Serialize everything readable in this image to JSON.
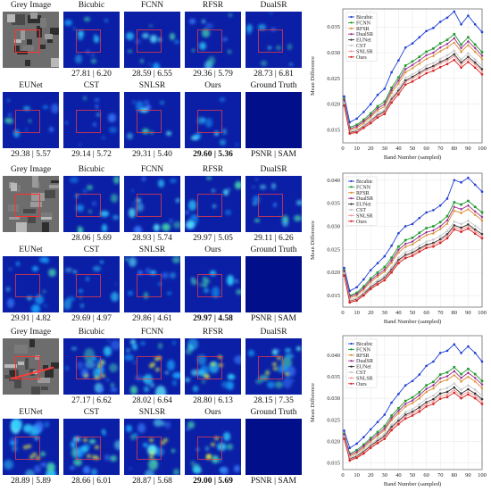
{
  "panels": [
    {
      "titles_top": [
        "Grey Image",
        "Bicubic",
        "FCNN",
        "RFSR",
        "DualSR"
      ],
      "values_top": [
        "",
        "27.81 | 6.20",
        "28.59 | 6.55",
        "29.36 | 5.79",
        "28.73 | 6.81"
      ],
      "titles_bottom": [
        "EUNet",
        "CST",
        "SNLSR",
        "Ours",
        "Ground Truth"
      ],
      "values_bottom": [
        "29.38 | 5.57",
        "29.14 | 5.72",
        "29.31 | 5.40",
        "29.60 | 5.36",
        "PSNR | SAM"
      ]
    },
    {
      "titles_top": [
        "Grey Image",
        "Bicubic",
        "FCNN",
        "RFSR",
        "DualSR"
      ],
      "values_top": [
        "",
        "28.06 | 5.69",
        "28.93 | 5.74",
        "29.97 | 5.05",
        "29.11 | 6.26"
      ],
      "titles_bottom": [
        "EUNet",
        "CST",
        "SNLSR",
        "Ours",
        "Ground Truth"
      ],
      "values_bottom": [
        "29.91 | 4.82",
        "29.69 | 4.97",
        "29.86 | 4.61",
        "29.97 | 4.58",
        "PSNR | SAM"
      ]
    },
    {
      "titles_top": [
        "Grey Image",
        "Bicubic",
        "FCNN",
        "RFSR",
        "DualSR"
      ],
      "values_top": [
        "",
        "27.17 | 6.62",
        "28.02 | 6.64",
        "28.80 | 6.13",
        "28.15 | 7.35"
      ],
      "titles_bottom": [
        "EUNet",
        "CST",
        "SNLSR",
        "Ours",
        "Ground Truth"
      ],
      "values_bottom": [
        "28.89 | 5.89",
        "28.66 | 6.01",
        "28.87 | 5.68",
        "29.00 | 5.69",
        "PSNR | SAM"
      ]
    }
  ],
  "chart_data": [
    {
      "type": "line",
      "xlabel": "Band Number (sampled)",
      "ylabel": "Mean Difference",
      "xlim": [
        0,
        100
      ],
      "ylim": [
        0.0125,
        0.0385
      ],
      "xticks": [
        0,
        10,
        20,
        30,
        40,
        50,
        60,
        70,
        80,
        90,
        100
      ],
      "yticks": [
        0.015,
        0.02,
        0.025,
        0.03,
        0.035
      ],
      "legend_position": "top-left",
      "x": [
        1,
        5,
        10,
        15,
        20,
        25,
        30,
        35,
        40,
        45,
        50,
        55,
        60,
        65,
        70,
        75,
        80,
        85,
        90,
        95,
        100
      ],
      "series": [
        {
          "name": "Bicubic",
          "color": "#1f3fd6",
          "values": [
            0.0215,
            0.0165,
            0.0172,
            0.0185,
            0.02,
            0.0218,
            0.023,
            0.0262,
            0.0285,
            0.031,
            0.0318,
            0.033,
            0.0342,
            0.0348,
            0.036,
            0.0368,
            0.038,
            0.0355,
            0.0372,
            0.0355,
            0.034
          ]
        },
        {
          "name": "FCNN",
          "color": "#1c9a2a",
          "values": [
            0.021,
            0.0155,
            0.016,
            0.017,
            0.0182,
            0.0196,
            0.0205,
            0.0232,
            0.0252,
            0.0275,
            0.0283,
            0.0292,
            0.0302,
            0.0308,
            0.0318,
            0.0325,
            0.0336,
            0.0316,
            0.033,
            0.0316,
            0.0301
          ]
        },
        {
          "name": "RFSR",
          "color": "#d98a2b",
          "values": [
            0.0205,
            0.015,
            0.0154,
            0.0164,
            0.0175,
            0.0188,
            0.0196,
            0.0222,
            0.024,
            0.0262,
            0.027,
            0.0279,
            0.0288,
            0.0294,
            0.0303,
            0.031,
            0.032,
            0.0302,
            0.0315,
            0.0302,
            0.0288
          ]
        },
        {
          "name": "DualSR",
          "color": "#9c2a8c",
          "values": [
            0.0208,
            0.0152,
            0.0157,
            0.0167,
            0.0178,
            0.0192,
            0.02,
            0.0227,
            0.0246,
            0.0268,
            0.0276,
            0.0285,
            0.0295,
            0.03,
            0.031,
            0.0317,
            0.0328,
            0.0309,
            0.0322,
            0.0309,
            0.0294
          ]
        },
        {
          "name": "EUNet",
          "color": "#333333",
          "values": [
            0.02,
            0.0145,
            0.0148,
            0.0157,
            0.0167,
            0.0179,
            0.0186,
            0.021,
            0.0226,
            0.0246,
            0.0253,
            0.0261,
            0.0269,
            0.0274,
            0.0282,
            0.0288,
            0.0297,
            0.0281,
            0.0292,
            0.0281,
            0.0268
          ]
        },
        {
          "name": "CST",
          "color": "#c8c8c8",
          "values": [
            0.0202,
            0.0147,
            0.015,
            0.016,
            0.017,
            0.0182,
            0.019,
            0.0214,
            0.0231,
            0.0251,
            0.0258,
            0.0266,
            0.0275,
            0.028,
            0.0288,
            0.0295,
            0.0304,
            0.0287,
            0.0299,
            0.0287,
            0.0274
          ]
        },
        {
          "name": "SNLSR",
          "color": "#f29a9a",
          "values": [
            0.0199,
            0.0144,
            0.0147,
            0.0156,
            0.0166,
            0.0177,
            0.0184,
            0.0207,
            0.0223,
            0.0243,
            0.025,
            0.0258,
            0.0266,
            0.0271,
            0.0279,
            0.0285,
            0.0293,
            0.0277,
            0.0288,
            0.0277,
            0.0264
          ]
        },
        {
          "name": "Ours",
          "color": "#d62020",
          "values": [
            0.0197,
            0.0143,
            0.0145,
            0.0154,
            0.0163,
            0.0174,
            0.0181,
            0.0203,
            0.0219,
            0.0238,
            0.0244,
            0.0252,
            0.026,
            0.0265,
            0.0272,
            0.0278,
            0.0286,
            0.0271,
            0.0282,
            0.0271,
            0.0258
          ]
        }
      ]
    },
    {
      "type": "line",
      "xlabel": "Band Number (sampled)",
      "ylabel": "Mean Difference",
      "xlim": [
        0,
        100
      ],
      "ylim": [
        0.0125,
        0.0415
      ],
      "xticks": [
        0,
        10,
        20,
        30,
        40,
        50,
        60,
        70,
        80,
        90,
        100
      ],
      "yticks": [
        0.015,
        0.02,
        0.025,
        0.03,
        0.035,
        0.04
      ],
      "legend_position": "top-left",
      "x": [
        1,
        5,
        10,
        15,
        20,
        25,
        30,
        35,
        40,
        45,
        50,
        55,
        60,
        65,
        70,
        75,
        80,
        85,
        90,
        95,
        100
      ],
      "series": [
        {
          "name": "Bicubic",
          "color": "#1f3fd6",
          "values": [
            0.021,
            0.016,
            0.0168,
            0.0185,
            0.0205,
            0.022,
            0.0235,
            0.0258,
            0.0285,
            0.03,
            0.0305,
            0.0318,
            0.033,
            0.0335,
            0.0345,
            0.036,
            0.04,
            0.0395,
            0.0405,
            0.039,
            0.0375
          ]
        },
        {
          "name": "FCNN",
          "color": "#1c9a2a",
          "values": [
            0.0205,
            0.015,
            0.0156,
            0.017,
            0.0187,
            0.02,
            0.0212,
            0.0232,
            0.0256,
            0.027,
            0.0275,
            0.0286,
            0.0296,
            0.03,
            0.0309,
            0.0322,
            0.0352,
            0.0347,
            0.0355,
            0.0342,
            0.033
          ]
        },
        {
          "name": "RFSR",
          "color": "#d98a2b",
          "values": [
            0.0201,
            0.0145,
            0.015,
            0.0163,
            0.0179,
            0.0191,
            0.0202,
            0.0221,
            0.0243,
            0.0256,
            0.0261,
            0.0271,
            0.0281,
            0.0285,
            0.0294,
            0.0306,
            0.0334,
            0.0329,
            0.0337,
            0.0325,
            0.0313
          ]
        },
        {
          "name": "DualSR",
          "color": "#9c2a8c",
          "values": [
            0.0203,
            0.0148,
            0.0153,
            0.0166,
            0.0183,
            0.0195,
            0.0206,
            0.0226,
            0.0249,
            0.0262,
            0.0267,
            0.0278,
            0.0287,
            0.0291,
            0.03,
            0.0313,
            0.0342,
            0.0337,
            0.0345,
            0.0332,
            0.032
          ]
        },
        {
          "name": "EUNet",
          "color": "#333333",
          "values": [
            0.0196,
            0.0138,
            0.0142,
            0.0154,
            0.0168,
            0.0179,
            0.0189,
            0.0206,
            0.0227,
            0.0238,
            0.0243,
            0.0252,
            0.026,
            0.0264,
            0.0272,
            0.0283,
            0.0302,
            0.0297,
            0.0304,
            0.0293,
            0.0283
          ]
        },
        {
          "name": "CST",
          "color": "#c8c8c8",
          "values": [
            0.0198,
            0.0141,
            0.0145,
            0.0157,
            0.0172,
            0.0183,
            0.0193,
            0.0211,
            0.0232,
            0.0244,
            0.0249,
            0.0258,
            0.0267,
            0.0271,
            0.0279,
            0.029,
            0.031,
            0.0305,
            0.0312,
            0.0301,
            0.029
          ]
        },
        {
          "name": "SNLSR",
          "color": "#f29a9a",
          "values": [
            0.0195,
            0.0137,
            0.0141,
            0.0152,
            0.0166,
            0.0177,
            0.0186,
            0.0203,
            0.0224,
            0.0235,
            0.024,
            0.0249,
            0.0257,
            0.0261,
            0.0268,
            0.0279,
            0.0298,
            0.0293,
            0.03,
            0.0289,
            0.0279
          ]
        },
        {
          "name": "Ours",
          "color": "#d62020",
          "values": [
            0.0193,
            0.0135,
            0.0139,
            0.015,
            0.0164,
            0.0174,
            0.0183,
            0.02,
            0.022,
            0.0231,
            0.0236,
            0.0245,
            0.0253,
            0.0256,
            0.0264,
            0.0274,
            0.0293,
            0.0288,
            0.0295,
            0.0284,
            0.0274
          ]
        }
      ]
    },
    {
      "type": "line",
      "xlabel": "Band Number (sampled)",
      "ylabel": "Mean Difference",
      "xlim": [
        0,
        100
      ],
      "ylim": [
        0.0135,
        0.0445
      ],
      "xticks": [
        0,
        10,
        20,
        30,
        40,
        50,
        60,
        70,
        80,
        90,
        100
      ],
      "yticks": [
        0.015,
        0.02,
        0.025,
        0.03,
        0.035,
        0.04
      ],
      "legend_position": "top-left",
      "x": [
        1,
        5,
        10,
        15,
        20,
        25,
        30,
        35,
        40,
        45,
        50,
        55,
        60,
        65,
        70,
        75,
        80,
        85,
        90,
        95,
        100
      ],
      "series": [
        {
          "name": "Bicubic",
          "color": "#1f3fd6",
          "values": [
            0.0225,
            0.0185,
            0.0195,
            0.021,
            0.0228,
            0.0245,
            0.0262,
            0.029,
            0.031,
            0.033,
            0.034,
            0.0355,
            0.0375,
            0.0385,
            0.0405,
            0.041,
            0.0425,
            0.0405,
            0.042,
            0.0405,
            0.0385
          ]
        },
        {
          "name": "FCNN",
          "color": "#1c9a2a",
          "values": [
            0.0218,
            0.0172,
            0.018,
            0.0193,
            0.0208,
            0.0222,
            0.0236,
            0.026,
            0.0277,
            0.0294,
            0.0302,
            0.0314,
            0.033,
            0.0338,
            0.0355,
            0.036,
            0.0372,
            0.0356,
            0.0368,
            0.0356,
            0.034
          ]
        },
        {
          "name": "RFSR",
          "color": "#d98a2b",
          "values": [
            0.0214,
            0.0166,
            0.0173,
            0.0185,
            0.02,
            0.0213,
            0.0226,
            0.0249,
            0.0265,
            0.0281,
            0.0289,
            0.03,
            0.0315,
            0.0323,
            0.0338,
            0.0343,
            0.0354,
            0.0339,
            0.035,
            0.0339,
            0.0324
          ]
        },
        {
          "name": "DualSR",
          "color": "#9c2a8c",
          "values": [
            0.0216,
            0.0169,
            0.0176,
            0.0189,
            0.0204,
            0.0217,
            0.023,
            0.0254,
            0.0271,
            0.0287,
            0.0295,
            0.0307,
            0.0322,
            0.033,
            0.0346,
            0.0351,
            0.0363,
            0.0347,
            0.0359,
            0.0347,
            0.0332
          ]
        },
        {
          "name": "EUNet",
          "color": "#333333",
          "values": [
            0.0209,
            0.016,
            0.0166,
            0.0177,
            0.019,
            0.0202,
            0.0213,
            0.0234,
            0.0248,
            0.0262,
            0.0269,
            0.0279,
            0.0291,
            0.0298,
            0.0311,
            0.0315,
            0.0325,
            0.0311,
            0.0321,
            0.0311,
            0.0298
          ]
        },
        {
          "name": "CST",
          "color": "#c8c8c8",
          "values": [
            0.0211,
            0.0163,
            0.0169,
            0.0181,
            0.0194,
            0.0206,
            0.0218,
            0.0239,
            0.0254,
            0.0268,
            0.0275,
            0.0286,
            0.0299,
            0.0306,
            0.032,
            0.0324,
            0.0334,
            0.032,
            0.033,
            0.032,
            0.0306
          ]
        },
        {
          "name": "SNLSR",
          "color": "#f29a9a",
          "values": [
            0.0208,
            0.0158,
            0.0164,
            0.0175,
            0.0188,
            0.0199,
            0.021,
            0.023,
            0.0244,
            0.0258,
            0.0265,
            0.0274,
            0.0286,
            0.0293,
            0.0305,
            0.0309,
            0.0319,
            0.0306,
            0.0315,
            0.0306,
            0.0293
          ]
        },
        {
          "name": "Ours",
          "color": "#d62020",
          "values": [
            0.0206,
            0.0156,
            0.0162,
            0.0172,
            0.0185,
            0.0196,
            0.0206,
            0.0226,
            0.024,
            0.0253,
            0.026,
            0.0269,
            0.0281,
            0.0287,
            0.0299,
            0.0303,
            0.0313,
            0.03,
            0.0309,
            0.03,
            0.0287
          ]
        }
      ]
    }
  ]
}
